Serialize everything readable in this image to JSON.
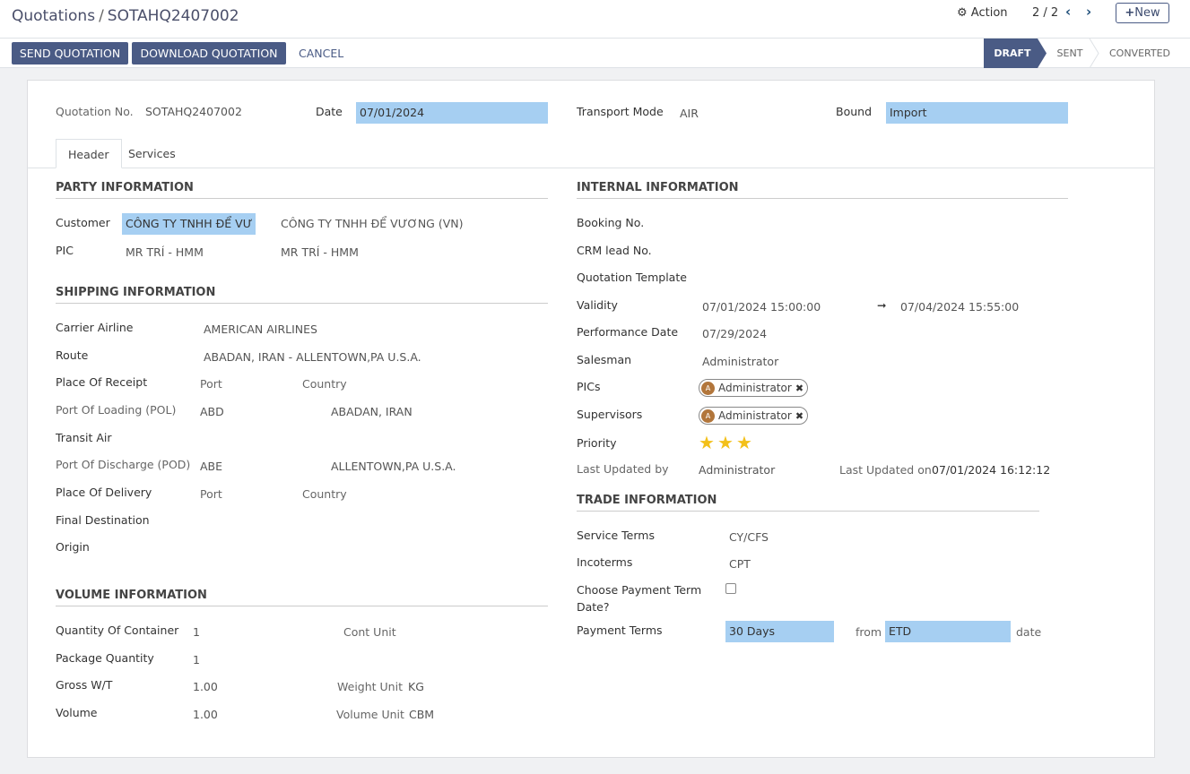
{
  "breadcrumb": {
    "parent": "Quotations",
    "separator": "/",
    "current": "SOTAHQ2407002"
  },
  "control": {
    "action_label": "Action",
    "pager": "2 / 2",
    "new_label": "New"
  },
  "buttons": {
    "send": "SEND QUOTATION",
    "download": "DOWNLOAD QUOTATION",
    "cancel": "CANCEL"
  },
  "status": {
    "steps": [
      "DRAFT",
      "SENT",
      "CONVERTED"
    ],
    "active": "DRAFT"
  },
  "header_fields": {
    "quotation_no_label": "Quotation No.",
    "quotation_no": "SOTAHQ2407002",
    "date_label": "Date",
    "date": "07/01/2024",
    "transport_label": "Transport Mode",
    "transport": "AIR",
    "bound_label": "Bound",
    "bound": "Import"
  },
  "tabs": [
    "Header",
    "Services"
  ],
  "party": {
    "title": "PARTY INFORMATION",
    "customer_label": "Customer",
    "customer_code": "CÔNG TY TNHH ĐỂ VƯ",
    "customer_name": "CÔNG TY TNHH ĐỂ VƯƠNG (VN)",
    "pic_label": "PIC",
    "pic_1": "MR TRÍ - HMM",
    "pic_2": "MR TRÍ - HMM"
  },
  "shipping": {
    "title": "SHIPPING INFORMATION",
    "carrier_label": "Carrier Airline",
    "carrier": "AMERICAN AIRLINES",
    "route_label": "Route",
    "route": "ABADAN, IRAN - ALLENTOWN,PA U.S.A.",
    "receipt_label": "Place Of Receipt",
    "receipt_port": "Port",
    "receipt_country": "Country",
    "pol_label": "Port Of Loading (POL)",
    "pol_code": "ABD",
    "pol_name": "ABADAN, IRAN",
    "transit_label": "Transit Air",
    "pod_label": "Port Of Discharge (POD)",
    "pod_code": "ABE",
    "pod_name": "ALLENTOWN,PA U.S.A.",
    "delivery_label": "Place Of Delivery",
    "delivery_port": "Port",
    "delivery_country": "Country",
    "final_label": "Final Destination",
    "origin_label": "Origin"
  },
  "volume": {
    "title": "VOLUME INFORMATION",
    "qty_container_label": "Quantity Of Container",
    "qty_container": "1",
    "cont_unit_label": "Cont Unit",
    "pkg_qty_label": "Package Quantity",
    "pkg_qty": "1",
    "gross_label": "Gross W/T",
    "gross": "1.00",
    "weight_unit_label": "Weight Unit",
    "weight_unit": "KG",
    "volume_label": "Volume",
    "volume": "1.00",
    "volume_unit_label": "Volume Unit",
    "volume_unit": "CBM"
  },
  "internal": {
    "title": "INTERNAL INFORMATION",
    "booking_label": "Booking No.",
    "crm_label": "CRM lead No.",
    "template_label": "Quotation Template",
    "validity_label": "Validity",
    "validity_from": "07/01/2024 15:00:00",
    "validity_arrow": "➞",
    "validity_to": "07/04/2024 15:55:00",
    "perf_label": "Performance Date",
    "perf": "07/29/2024",
    "salesman_label": "Salesman",
    "salesman": "Administrator",
    "pics_label": "PICs",
    "pics_tag": "Administrator",
    "pics_avatar": "A",
    "supervisors_label": "Supervisors",
    "supervisors_tag": "Administrator",
    "supervisors_avatar": "A",
    "priority_label": "Priority",
    "priority_value": 3,
    "priority_max": 3,
    "last_by_label": "Last Updated by",
    "last_by": "Administrator",
    "last_on_label": "Last Updated on",
    "last_on": "07/01/2024 16:12:12"
  },
  "trade": {
    "title": "TRADE INFORMATION",
    "service_terms_label": "Service Terms",
    "service_terms": "CY/CFS",
    "incoterms_label": "Incoterms",
    "incoterms": "CPT",
    "choose_label_1": "Choose Payment Term",
    "choose_label_2": "Date?",
    "choose_checked": false,
    "payment_label": "Payment Terms",
    "payment": "30 Days",
    "from_label": "from",
    "from_value": "ETD",
    "date_label": "date"
  },
  "icons": {
    "gear": "gear-icon",
    "prev": "chevron-left-icon",
    "next": "chevron-right-icon",
    "plus": "plus-icon",
    "star": "star-icon"
  },
  "colors": {
    "primary": "#4a5b85",
    "highlight": "#a6cff2",
    "star": "#f3c01a",
    "avatar": "#b2763b"
  }
}
